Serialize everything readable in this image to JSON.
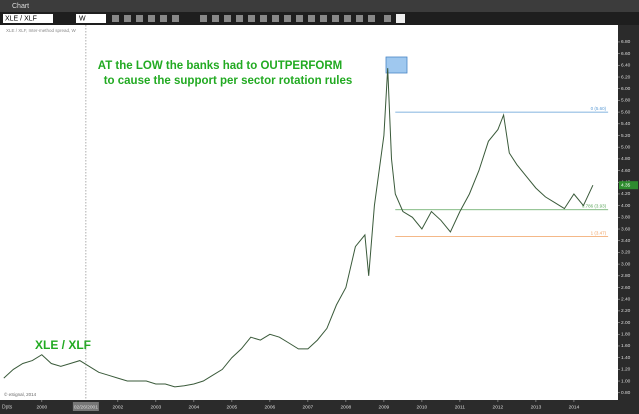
{
  "window": {
    "title": "Chart",
    "symbol": "XLE / XLF",
    "interval": "W"
  },
  "chart_data": {
    "type": "line",
    "info": "XLE / XLF, Inter-method spread, W",
    "annotations": [
      "AT the LOW the banks had to OUTPERFORM",
      "to cause the support per sector rotation rules",
      "XLE / XLF"
    ],
    "copyright": "© eSignal, 2014",
    "corner_label": "Dpts",
    "color": "#3a5a3a",
    "x": [
      1999.0,
      1999.25,
      1999.5,
      1999.75,
      2000.0,
      2000.25,
      2000.5,
      2000.75,
      2001.0,
      2001.25,
      2001.5,
      2001.75,
      2002.0,
      2002.25,
      2002.5,
      2002.75,
      2003.0,
      2003.25,
      2003.5,
      2003.75,
      2004.0,
      2004.25,
      2004.5,
      2004.75,
      2005.0,
      2005.25,
      2005.5,
      2005.75,
      2006.0,
      2006.25,
      2006.5,
      2006.75,
      2007.0,
      2007.25,
      2007.5,
      2007.75,
      2008.0,
      2008.25,
      2008.5,
      2008.6,
      2008.75,
      2009.0,
      2009.1,
      2009.2,
      2009.3,
      2009.5,
      2009.75,
      2010.0,
      2010.25,
      2010.5,
      2010.75,
      2011.0,
      2011.25,
      2011.5,
      2011.75,
      2012.0,
      2012.15,
      2012.3,
      2012.5,
      2012.75,
      2013.0,
      2013.25,
      2013.5,
      2013.75,
      2014.0,
      2014.25,
      2014.5
    ],
    "values": [
      1.05,
      1.2,
      1.3,
      1.35,
      1.45,
      1.3,
      1.25,
      1.3,
      1.35,
      1.25,
      1.15,
      1.1,
      1.05,
      1.0,
      1.0,
      1.0,
      0.95,
      0.95,
      0.9,
      0.92,
      0.95,
      1.0,
      1.1,
      1.2,
      1.4,
      1.55,
      1.75,
      1.7,
      1.8,
      1.75,
      1.65,
      1.55,
      1.55,
      1.7,
      1.9,
      2.3,
      2.6,
      3.3,
      3.5,
      2.8,
      4.0,
      5.2,
      6.35,
      4.8,
      4.2,
      3.9,
      3.8,
      3.6,
      3.9,
      3.75,
      3.55,
      3.9,
      4.2,
      4.6,
      5.1,
      5.3,
      5.55,
      4.9,
      4.7,
      4.5,
      4.3,
      4.15,
      4.05,
      3.95,
      4.2,
      4.0,
      4.35
    ],
    "xlim": [
      1998.9,
      2015.16
    ],
    "ylim": [
      0.71,
      6.97
    ],
    "xticks": [
      2000,
      {
        "value": 2001.16,
        "label": "02/26/2001"
      },
      2002,
      2003,
      2004,
      2005,
      2006,
      2007,
      2008,
      2009,
      2010,
      2011,
      2012,
      2013,
      2014
    ],
    "yticks": [
      {
        "value": 0.8,
        "label": "0.80"
      },
      {
        "value": 1.0,
        "label": "1.00"
      },
      {
        "value": 1.2,
        "label": "1.20"
      },
      {
        "value": 1.4,
        "label": "1.40"
      },
      {
        "value": 1.6,
        "label": "1.60"
      },
      {
        "value": 1.8,
        "label": "1.80"
      },
      {
        "value": 2.0,
        "label": "2.00"
      },
      {
        "value": 2.2,
        "label": "2.20"
      },
      {
        "value": 2.4,
        "label": "2.40"
      },
      {
        "value": 2.6,
        "label": "2.60"
      },
      {
        "value": 2.8,
        "label": "2.80"
      },
      {
        "value": 3.0,
        "label": "3.00"
      },
      {
        "value": 3.2,
        "label": "3.20"
      },
      {
        "value": 3.4,
        "label": "3.40"
      },
      {
        "value": 3.6,
        "label": "3.60"
      },
      {
        "value": 3.8,
        "label": "3.80"
      },
      {
        "value": 4.0,
        "label": "4.00"
      },
      {
        "value": 4.2,
        "label": "4.20"
      },
      {
        "value": 4.4,
        "label": "4.40"
      },
      {
        "value": 4.6,
        "label": "4.60"
      },
      {
        "value": 4.8,
        "label": "4.80"
      },
      {
        "value": 5.0,
        "label": "5.00"
      },
      {
        "value": 5.2,
        "label": "5.20"
      },
      {
        "value": 5.4,
        "label": "5.40"
      },
      {
        "value": 5.6,
        "label": "5.60"
      },
      {
        "value": 5.8,
        "label": "5.80"
      },
      {
        "value": 6.0,
        "label": "6.00"
      },
      {
        "value": 6.2,
        "label": "6.20"
      },
      {
        "value": 6.4,
        "label": "6.40"
      },
      {
        "value": 6.6,
        "label": "6.60"
      },
      {
        "value": 6.8,
        "label": "6.80"
      }
    ],
    "crosshair_tick": 1,
    "last_price": 4.35,
    "last_price_color": "#2e8b2e",
    "fib": {
      "x_range": [
        2009.3,
        2014.9
      ],
      "levels": [
        {
          "value": 5.6,
          "label": "0 (5.60)",
          "color": "#5b9bd5"
        },
        {
          "value": 3.93,
          "label": "0.786 (3.93)",
          "color": "#5aa55a"
        },
        {
          "value": 3.47,
          "label": "1 (3.47)",
          "color": "#f0a060"
        }
      ]
    }
  }
}
